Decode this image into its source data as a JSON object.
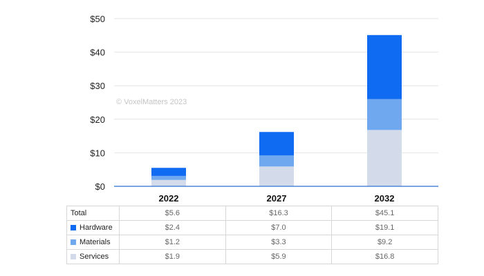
{
  "chart_data": {
    "type": "bar",
    "stacked": true,
    "categories": [
      "2022",
      "2027",
      "2032"
    ],
    "series": [
      {
        "name": "Services",
        "values": [
          1.9,
          5.9,
          16.8
        ],
        "color": "#d3dbea"
      },
      {
        "name": "Materials",
        "values": [
          1.2,
          3.3,
          9.2
        ],
        "color": "#6fa8ee"
      },
      {
        "name": "Hardware",
        "values": [
          2.4,
          7.0,
          19.1
        ],
        "color": "#0f6bf2"
      }
    ],
    "ylim": [
      0,
      50
    ],
    "yticks": [
      0,
      10,
      20,
      30,
      40,
      50
    ],
    "ytick_labels": [
      "$0",
      "$10",
      "$20",
      "$30",
      "$40",
      "$50"
    ],
    "grid": true,
    "watermark": "© VoxelMatters 2023",
    "table": {
      "rows": [
        {
          "label": "Total",
          "values": [
            "$5.6",
            "$16.3",
            "$45.1"
          ]
        },
        {
          "label": "Hardware",
          "values": [
            "$2.4",
            "$7.0",
            "$19.1"
          ],
          "color": "#0f6bf2"
        },
        {
          "label": "Materials",
          "values": [
            "$1.2",
            "$3.3",
            "$9.2"
          ],
          "color": "#6fa8ee"
        },
        {
          "label": "Services",
          "values": [
            "$1.9",
            "$5.9",
            "$16.8"
          ],
          "color": "#d3dbea"
        }
      ]
    }
  }
}
